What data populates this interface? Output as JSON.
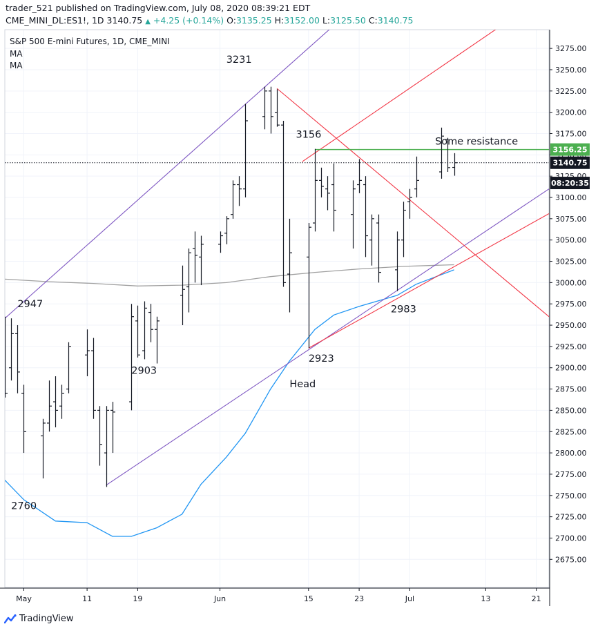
{
  "header": {
    "published_line": "trader_521 published on TradingView.com, July 08, 2020 08:39:21 EDT",
    "symbol": "CME_MINI_DL:ES1!, 1D",
    "last": "3140.75",
    "change": "+4.25 (+0.14%)",
    "open_label": "O:",
    "open": "3135.25",
    "high_label": "H:",
    "high": "3152.00",
    "low_label": "L:",
    "low": "3125.50",
    "close_label": "C:",
    "close": "3140.75"
  },
  "legend": {
    "title": "S&P 500 E-mini Futures, 1D, CME_MINI",
    "ma1": "MA",
    "ma2": "MA"
  },
  "branding": {
    "logo_text": "TradingView"
  },
  "colors": {
    "bars": "#131722",
    "channel": "#7e57c2",
    "red_lines": "#f23645",
    "resistance": "#4caf50",
    "ma_gray": "#a0a0a0",
    "ma_blue": "#2196f3",
    "price_label_green": "#4caf50",
    "price_label_black": "#131722"
  },
  "chart_data": {
    "type": "ohlc",
    "title": "S&P 500 E-mini Futures, 1D, CME_MINI",
    "y_axis_ticks": [
      3275,
      3250,
      3225,
      3200,
      3175,
      3150,
      3125,
      3100,
      3075,
      3050,
      3025,
      3000,
      2975,
      2950,
      2925,
      2900,
      2875,
      2850,
      2825,
      2800,
      2775,
      2750,
      2725,
      2700,
      2675
    ],
    "y_tick_labels": [
      "3275.00",
      "3250.00",
      "3225.00",
      "3200.00",
      "3175.00",
      "3150.00",
      "3125.00",
      "3100.00",
      "3075.00",
      "3050.00",
      "3025.00",
      "3000.00",
      "2975.00",
      "2950.00",
      "2925.00",
      "2900.00",
      "2875.00",
      "2850.00",
      "2825.00",
      "2800.00",
      "2775.00",
      "2750.00",
      "2725.00",
      "2700.00",
      "2675.00"
    ],
    "ylim": [
      2642,
      3297
    ],
    "x_axis": {
      "start_date": "2020-04-28",
      "end_date": "2020-07-23",
      "ticks": [
        {
          "date": "2020-05-01",
          "label": "May"
        },
        {
          "date": "2020-05-11",
          "label": "11"
        },
        {
          "date": "2020-05-19",
          "label": "19"
        },
        {
          "date": "2020-06-01",
          "label": "Jun"
        },
        {
          "date": "2020-06-15",
          "label": "15"
        },
        {
          "date": "2020-06-23",
          "label": "23"
        },
        {
          "date": "2020-07-01",
          "label": "Jul"
        },
        {
          "date": "2020-07-13",
          "label": "13"
        },
        {
          "date": "2020-07-21",
          "label": "21"
        }
      ]
    },
    "bars": [
      {
        "date": "2020-04-28",
        "o": 2880,
        "h": 2960,
        "l": 2865,
        "c": 2870
      },
      {
        "date": "2020-04-29",
        "o": 2900,
        "h": 2958,
        "l": 2885,
        "c": 2940
      },
      {
        "date": "2020-04-30",
        "o": 2940,
        "h": 2950,
        "l": 2870,
        "c": 2895
      },
      {
        "date": "2020-05-01",
        "o": 2870,
        "h": 2880,
        "l": 2800,
        "c": 2825
      },
      {
        "date": "2020-05-04",
        "o": 2820,
        "h": 2840,
        "l": 2770,
        "c": 2835
      },
      {
        "date": "2020-05-05",
        "o": 2835,
        "h": 2885,
        "l": 2825,
        "c": 2855
      },
      {
        "date": "2020-05-06",
        "o": 2860,
        "h": 2890,
        "l": 2830,
        "c": 2850
      },
      {
        "date": "2020-05-07",
        "o": 2855,
        "h": 2880,
        "l": 2840,
        "c": 2870
      },
      {
        "date": "2020-05-08",
        "o": 2875,
        "h": 2930,
        "l": 2870,
        "c": 2925
      },
      {
        "date": "2020-05-11",
        "o": 2915,
        "h": 2945,
        "l": 2890,
        "c": 2920
      },
      {
        "date": "2020-05-12",
        "o": 2920,
        "h": 2935,
        "l": 2840,
        "c": 2850
      },
      {
        "date": "2020-05-13",
        "o": 2850,
        "h": 2855,
        "l": 2785,
        "c": 2810
      },
      {
        "date": "2020-05-14",
        "o": 2800,
        "h": 2855,
        "l": 2760,
        "c": 2850
      },
      {
        "date": "2020-05-15",
        "o": 2850,
        "h": 2860,
        "l": 2800,
        "c": 2848
      },
      {
        "date": "2020-05-18",
        "o": 2860,
        "h": 2975,
        "l": 2850,
        "c": 2960
      },
      {
        "date": "2020-05-19",
        "o": 2955,
        "h": 2973,
        "l": 2912,
        "c": 2915
      },
      {
        "date": "2020-05-20",
        "o": 2920,
        "h": 2978,
        "l": 2910,
        "c": 2970
      },
      {
        "date": "2020-05-21",
        "o": 2965,
        "h": 2975,
        "l": 2930,
        "c": 2945
      },
      {
        "date": "2020-05-22",
        "o": 2945,
        "h": 2960,
        "l": 2905,
        "c": 2955
      },
      {
        "date": "2020-05-26",
        "o": 2985,
        "h": 3020,
        "l": 2950,
        "c": 2992
      },
      {
        "date": "2020-05-27",
        "o": 2995,
        "h": 3040,
        "l": 2965,
        "c": 3035
      },
      {
        "date": "2020-05-28",
        "o": 3040,
        "h": 3060,
        "l": 3000,
        "c": 3032
      },
      {
        "date": "2020-05-29",
        "o": 3030,
        "h": 3055,
        "l": 2997,
        "c": 3045
      },
      {
        "date": "2020-06-01",
        "o": 3045,
        "h": 3060,
        "l": 3035,
        "c": 3055
      },
      {
        "date": "2020-06-02",
        "o": 3058,
        "h": 3078,
        "l": 3045,
        "c": 3075
      },
      {
        "date": "2020-06-03",
        "o": 3080,
        "h": 3120,
        "l": 3075,
        "c": 3115
      },
      {
        "date": "2020-06-04",
        "o": 3115,
        "h": 3125,
        "l": 3090,
        "c": 3110
      },
      {
        "date": "2020-06-05",
        "o": 3110,
        "h": 3210,
        "l": 3100,
        "c": 3190
      },
      {
        "date": "2020-06-08",
        "o": 3195,
        "h": 3230,
        "l": 3180,
        "c": 3225
      },
      {
        "date": "2020-06-09",
        "o": 3225,
        "h": 3230,
        "l": 3175,
        "c": 3195
      },
      {
        "date": "2020-06-10",
        "o": 3200,
        "h": 3227,
        "l": 3183,
        "c": 3185
      },
      {
        "date": "2020-06-11",
        "o": 3185,
        "h": 3190,
        "l": 2995,
        "c": 3000
      },
      {
        "date": "2020-06-12",
        "o": 3010,
        "h": 3075,
        "l": 2965,
        "c": 3035
      },
      {
        "date": "2020-06-15",
        "o": 3030,
        "h": 3070,
        "l": 2923,
        "c": 3065
      },
      {
        "date": "2020-06-16",
        "o": 3070,
        "h": 3157,
        "l": 3060,
        "c": 3120
      },
      {
        "date": "2020-06-17",
        "o": 3120,
        "h": 3135,
        "l": 3100,
        "c": 3113
      },
      {
        "date": "2020-06-18",
        "o": 3110,
        "h": 3125,
        "l": 3085,
        "c": 3105
      },
      {
        "date": "2020-06-19",
        "o": 3115,
        "h": 3140,
        "l": 3060,
        "c": 3085
      },
      {
        "date": "2020-06-22",
        "o": 3080,
        "h": 3120,
        "l": 3040,
        "c": 3110
      },
      {
        "date": "2020-06-23",
        "o": 3115,
        "h": 3145,
        "l": 3105,
        "c": 3120
      },
      {
        "date": "2020-06-24",
        "o": 3115,
        "h": 3125,
        "l": 3030,
        "c": 3055
      },
      {
        "date": "2020-06-25",
        "o": 3050,
        "h": 3080,
        "l": 3020,
        "c": 3075
      },
      {
        "date": "2020-06-26",
        "o": 3070,
        "h": 3080,
        "l": 3000,
        "c": 3012
      },
      {
        "date": "2020-06-29",
        "o": 3015,
        "h": 3060,
        "l": 2990,
        "c": 3050
      },
      {
        "date": "2020-06-30",
        "o": 3050,
        "h": 3095,
        "l": 3030,
        "c": 3085
      },
      {
        "date": "2020-07-01",
        "o": 3095,
        "h": 3110,
        "l": 3075,
        "c": 3100
      },
      {
        "date": "2020-07-02",
        "o": 3110,
        "h": 3148,
        "l": 3100,
        "c": 3120
      },
      {
        "date": "2020-07-06",
        "o": 3130,
        "h": 3182,
        "l": 3122,
        "c": 3172
      },
      {
        "date": "2020-07-07",
        "o": 3168,
        "h": 3170,
        "l": 3130,
        "c": 3135
      },
      {
        "date": "2020-07-08",
        "o": 3135.25,
        "h": 3152,
        "l": 3125.5,
        "c": 3140.75
      }
    ],
    "ma_gray": [
      {
        "date": "2020-04-28",
        "v": 3004
      },
      {
        "date": "2020-05-05",
        "v": 3001
      },
      {
        "date": "2020-05-12",
        "v": 2999
      },
      {
        "date": "2020-05-19",
        "v": 2996
      },
      {
        "date": "2020-05-26",
        "v": 2997
      },
      {
        "date": "2020-06-02",
        "v": 3000
      },
      {
        "date": "2020-06-09",
        "v": 3007
      },
      {
        "date": "2020-06-16",
        "v": 3012
      },
      {
        "date": "2020-06-23",
        "v": 3016
      },
      {
        "date": "2020-06-30",
        "v": 3019
      },
      {
        "date": "2020-07-08",
        "v": 3021
      }
    ],
    "ma_blue": [
      {
        "date": "2020-04-28",
        "v": 2768
      },
      {
        "date": "2020-05-01",
        "v": 2745
      },
      {
        "date": "2020-05-06",
        "v": 2720
      },
      {
        "date": "2020-05-11",
        "v": 2718
      },
      {
        "date": "2020-05-15",
        "v": 2702
      },
      {
        "date": "2020-05-18",
        "v": 2702
      },
      {
        "date": "2020-05-22",
        "v": 2712
      },
      {
        "date": "2020-05-26",
        "v": 2728
      },
      {
        "date": "2020-05-29",
        "v": 2763
      },
      {
        "date": "2020-06-02",
        "v": 2795
      },
      {
        "date": "2020-06-05",
        "v": 2823
      },
      {
        "date": "2020-06-09",
        "v": 2875
      },
      {
        "date": "2020-06-12",
        "v": 2908
      },
      {
        "date": "2020-06-16",
        "v": 2945
      },
      {
        "date": "2020-06-19",
        "v": 2962
      },
      {
        "date": "2020-06-23",
        "v": 2972
      },
      {
        "date": "2020-06-29",
        "v": 2985
      },
      {
        "date": "2020-07-02",
        "v": 2998
      },
      {
        "date": "2020-07-08",
        "v": 3015
      }
    ],
    "trend_lines": [
      {
        "name": "channel-upper",
        "color": "channel",
        "from": {
          "date": "2020-04-28",
          "v": 2958
        },
        "to": {
          "date": "2020-06-24",
          "v": 3335
        }
      },
      {
        "name": "channel-lower",
        "color": "channel",
        "from": {
          "date": "2020-05-14",
          "v": 2762
        },
        "to": {
          "date": "2020-07-23",
          "v": 3110
        }
      },
      {
        "name": "red-upper",
        "color": "red_lines",
        "from": {
          "date": "2020-06-14",
          "v": 3142
        },
        "to": {
          "date": "2020-07-23",
          "v": 3340
        }
      },
      {
        "name": "red-lower",
        "color": "red_lines",
        "from": {
          "date": "2020-06-15",
          "v": 2923
        },
        "to": {
          "date": "2020-07-23",
          "v": 3081
        }
      },
      {
        "name": "red-down",
        "color": "red_lines",
        "from": {
          "date": "2020-06-10",
          "v": 3228
        },
        "to": {
          "date": "2020-07-23",
          "v": 2960
        }
      },
      {
        "name": "resistance",
        "color": "resistance",
        "from": {
          "date": "2020-06-16",
          "v": 3156.25
        },
        "to": {
          "date": "2020-07-23",
          "v": 3156.25
        }
      }
    ],
    "annotations": [
      {
        "text": "3231",
        "date": "2020-06-02",
        "v": 3258
      },
      {
        "text": "3156",
        "date": "2020-06-13",
        "v": 3170
      },
      {
        "text": "Some resistance",
        "date": "2020-07-05",
        "v": 3162
      },
      {
        "text": "2947",
        "date": "2020-04-30",
        "v": 2971
      },
      {
        "text": "2903",
        "date": "2020-05-18",
        "v": 2893
      },
      {
        "text": "2923",
        "date": "2020-06-15",
        "v": 2907
      },
      {
        "text": "2983",
        "date": "2020-06-28",
        "v": 2965
      },
      {
        "text": "Head",
        "date": "2020-06-12",
        "v": 2877
      },
      {
        "text": "2760",
        "date": "2020-04-29",
        "v": 2734
      }
    ],
    "price_labels": [
      {
        "text": "3156.25",
        "v": 3156.25,
        "color": "price_label_green"
      },
      {
        "text": "3140.75",
        "v": 3140.75,
        "color": "price_label_black"
      },
      {
        "text": "08:20:35",
        "v": 3117,
        "color": "price_label_black"
      }
    ],
    "last_price": 3140.75
  }
}
